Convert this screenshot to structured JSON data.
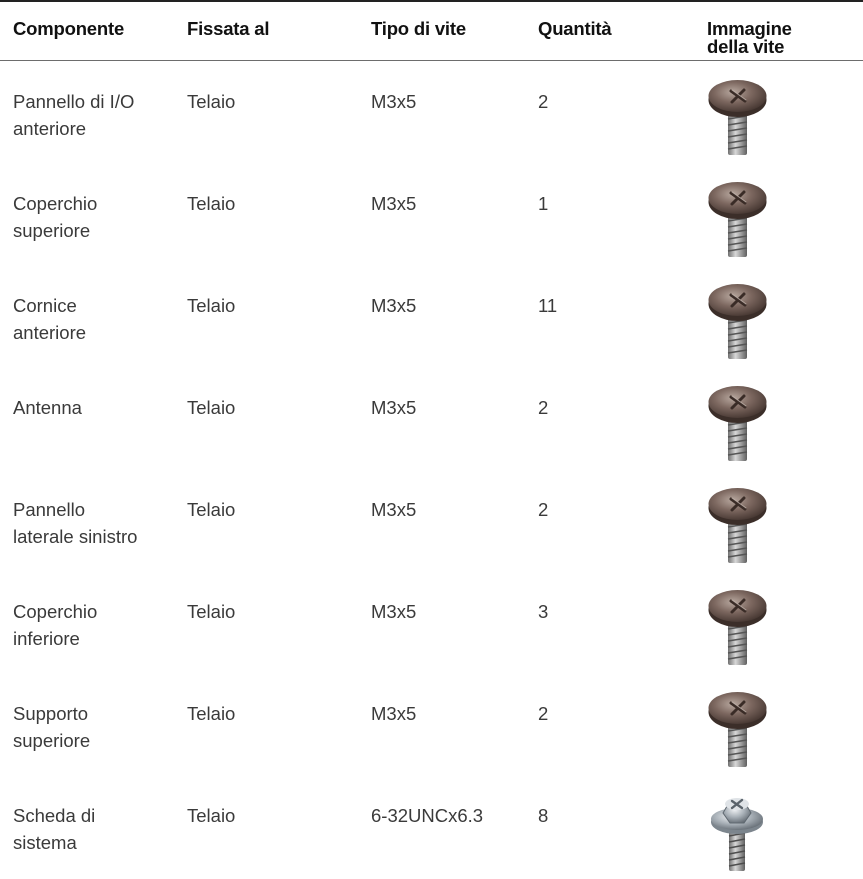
{
  "header": {
    "component": "Componente",
    "fixed_to": "Fissata al",
    "screw_type": "Tipo di vite",
    "quantity": "Quantità",
    "image_line1": "Immagine",
    "image_line2": "della vite"
  },
  "rows": [
    {
      "component_line1": "Pannello di I/O",
      "component_line2": "anteriore",
      "fixed_to": "Telaio",
      "screw_type": "M3x5",
      "quantity": "2",
      "image_icon": "brown-phillips-screw-icon"
    },
    {
      "component_line1": "Coperchio",
      "component_line2": "superiore",
      "fixed_to": "Telaio",
      "screw_type": "M3x5",
      "quantity": "1",
      "image_icon": "brown-phillips-screw-icon"
    },
    {
      "component_line1": "Cornice",
      "component_line2": "anteriore",
      "fixed_to": "Telaio",
      "screw_type": "M3x5",
      "quantity": "11",
      "image_icon": "brown-phillips-screw-icon"
    },
    {
      "component_line1": "Antenna",
      "component_line2": "",
      "fixed_to": "Telaio",
      "screw_type": "M3x5",
      "quantity": "2",
      "image_icon": "brown-phillips-screw-icon"
    },
    {
      "component_line1": "Pannello",
      "component_line2": "laterale sinistro",
      "fixed_to": "Telaio",
      "screw_type": "M3x5",
      "quantity": "2",
      "image_icon": "brown-phillips-screw-icon"
    },
    {
      "component_line1": "Coperchio",
      "component_line2": "inferiore",
      "fixed_to": "Telaio",
      "screw_type": "M3x5",
      "quantity": "3",
      "image_icon": "brown-phillips-screw-icon"
    },
    {
      "component_line1": "Supporto",
      "component_line2": "superiore",
      "fixed_to": "Telaio",
      "screw_type": "M3x5",
      "quantity": "2",
      "image_icon": "brown-phillips-screw-icon"
    },
    {
      "component_line1": "Scheda di",
      "component_line2": "sistema",
      "fixed_to": "Telaio",
      "screw_type": "6-32UNCx6.3",
      "quantity": "8",
      "image_icon": "silver-hex-washer-screw-icon"
    }
  ]
}
